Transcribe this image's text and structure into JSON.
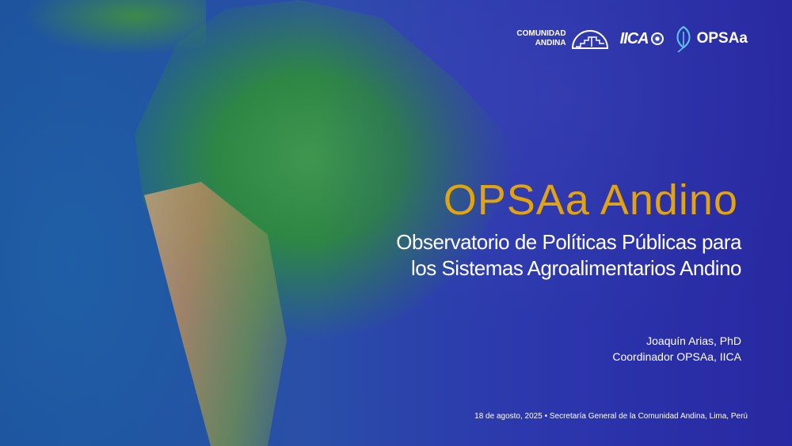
{
  "logos": {
    "comunidad_andina": "COMUNIDAD ANDINA",
    "comunidad_andina_line1": "COMUNIDAD",
    "comunidad_andina_line2": "ANDINA",
    "iica": "IICA",
    "opsaa": "OPSAa"
  },
  "slide": {
    "title": "OPSAa Andino",
    "subtitle_line1": "Observatorio de Políticas Públicas para",
    "subtitle_line2": "los Sistemas Agroalimentarios Andino",
    "author_name": "Joaquín Arias, PhD",
    "author_role": "Coordinador OPSAa, IICA",
    "footer": "18 de agosto, 2025 • Secretaría General de la Comunidad Andina, Lima, Perú"
  },
  "colors": {
    "title": "#e2a30c",
    "background": "#2b2fa8",
    "text": "#ffffff"
  }
}
